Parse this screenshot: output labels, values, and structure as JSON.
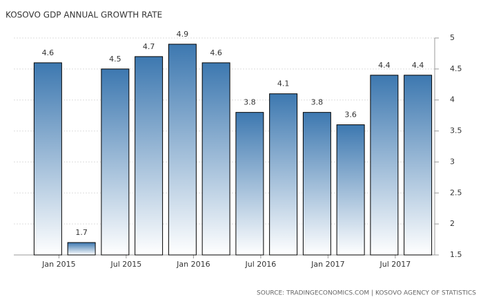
{
  "chart_data": {
    "type": "bar",
    "title": "KOSOVO GDP ANNUAL GROWTH RATE",
    "source": "SOURCE: TRADINGECONOMICS.COM | KOSOVO AGENCY OF STATISTICS",
    "categories": [
      "Jan 2015",
      null,
      "Jul 2015",
      null,
      "Jan 2016",
      null,
      "Jul 2016",
      null,
      "Jan 2017",
      null,
      "Jul 2017",
      null
    ],
    "values": [
      4.6,
      1.7,
      4.5,
      4.7,
      4.9,
      4.6,
      3.8,
      4.1,
      3.8,
      3.6,
      4.4,
      4.4
    ],
    "color": "#3d78b0",
    "ylim": [
      1.5,
      5
    ],
    "yticks": [
      1.5,
      2,
      2.5,
      3,
      3.5,
      4,
      4.5,
      5
    ],
    "grid": true,
    "y_axis_side": "right"
  }
}
